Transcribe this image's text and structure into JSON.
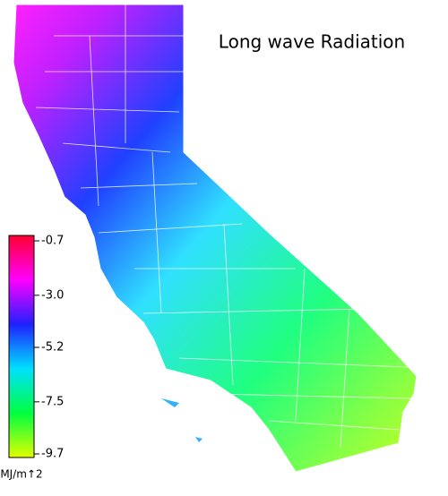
{
  "title": "Long wave Radiation",
  "colorbar": {
    "lim": [
      -0.7,
      -9.7
    ],
    "ticks": [
      -0.7,
      {
        "value": -3,
        "label": "-3.0"
      },
      -5.2,
      -7.5,
      -9.7
    ],
    "colors": [
      "#ff0030",
      "#ff00ff",
      "#2020ff",
      "#00e0ff",
      "#00ff40",
      "#e0ff00"
    ],
    "unit": "MJ/m↑2"
  }
}
